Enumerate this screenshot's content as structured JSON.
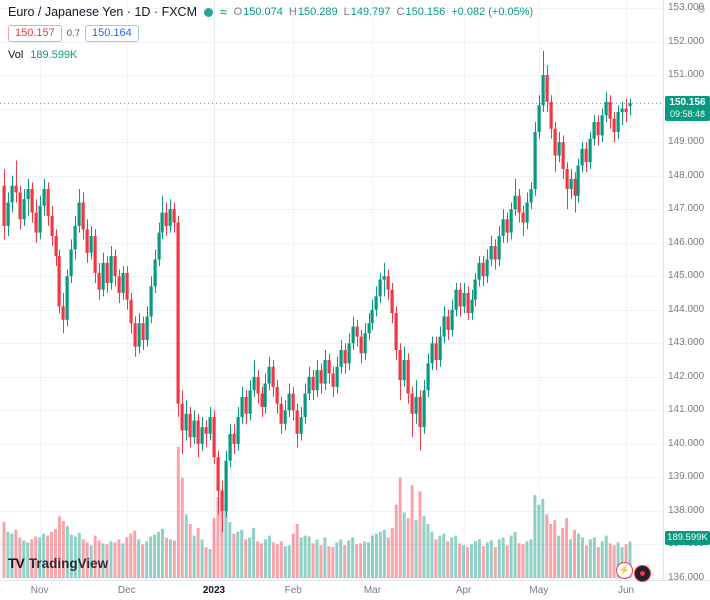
{
  "header": {
    "symbol_title": "Euro / Japanese Yen · 1D · FXCM",
    "ohlc": {
      "o_label": "O",
      "o_value": "150.074",
      "h_label": "H",
      "h_value": "150.289",
      "l_label": "L",
      "l_value": "149.797",
      "c_label": "C",
      "c_value": "150.156",
      "change": "+0.082 (+0.05%)"
    },
    "bid": "150.157",
    "spread": "0.7",
    "ask": "150.164",
    "vol_label": "Vol",
    "vol_value": "189.599K"
  },
  "price_badge": {
    "price": "150.156",
    "countdown": "09:58:48"
  },
  "vol_badge": "189.599K",
  "logo": {
    "mark": "TV",
    "text": "TradingView"
  },
  "icons": {
    "gear": "⚙",
    "lightning": "⚡",
    "wave": "≈"
  },
  "chart_data": {
    "type": "candlestick",
    "ylim": [
      136,
      153
    ],
    "y_tick_labels": [
      "153.000",
      "152.000",
      "151.000",
      "150.000",
      "149.000",
      "148.000",
      "147.000",
      "146.000",
      "145.000",
      "144.000",
      "143.000",
      "142.000",
      "141.000",
      "140.000",
      "139.000",
      "138.000",
      "137.000",
      "136.000"
    ],
    "months": [
      {
        "label": "Nov",
        "idx": 9
      },
      {
        "label": "Dec",
        "idx": 31
      },
      {
        "label": "2023",
        "idx": 53,
        "year": true
      },
      {
        "label": "Feb",
        "idx": 73
      },
      {
        "label": "Mar",
        "idx": 93
      },
      {
        "label": "Apr",
        "idx": 116
      },
      {
        "label": "May",
        "idx": 135
      },
      {
        "label": "Jun",
        "idx": 157
      }
    ],
    "up_color": "#089981",
    "down_color": "#f23645",
    "vol_up_color": "rgba(8,153,129,0.45)",
    "vol_down_color": "rgba(242,54,69,0.45)",
    "grid_color": "#f0f3fa",
    "last_price": 150.156,
    "vol_axis_max": 700,
    "candles": [
      [
        147.7,
        148.2,
        146.1,
        146.5,
        290
      ],
      [
        146.5,
        147.5,
        146.2,
        147.2,
        240
      ],
      [
        147.2,
        148.0,
        146.9,
        147.7,
        230
      ],
      [
        147.7,
        148.45,
        147.2,
        147.5,
        250
      ],
      [
        147.5,
        147.7,
        146.4,
        146.7,
        210
      ],
      [
        146.7,
        147.6,
        146.5,
        147.3,
        195
      ],
      [
        147.3,
        147.9,
        146.8,
        147.6,
        185
      ],
      [
        147.6,
        147.8,
        146.6,
        146.9,
        200
      ],
      [
        146.9,
        147.3,
        146.0,
        146.3,
        215
      ],
      [
        146.3,
        147.4,
        146.1,
        147.1,
        210
      ],
      [
        147.1,
        147.9,
        146.8,
        147.6,
        230
      ],
      [
        147.6,
        147.8,
        146.5,
        146.8,
        220
      ],
      [
        146.8,
        147.1,
        145.9,
        146.2,
        240
      ],
      [
        146.2,
        146.4,
        145.3,
        145.6,
        255
      ],
      [
        145.6,
        145.8,
        143.9,
        144.1,
        320
      ],
      [
        144.1,
        144.5,
        143.3,
        143.7,
        295
      ],
      [
        143.7,
        145.2,
        143.5,
        145.0,
        270
      ],
      [
        145.0,
        146.1,
        144.8,
        145.8,
        225
      ],
      [
        145.8,
        146.8,
        145.5,
        146.5,
        215
      ],
      [
        146.5,
        147.6,
        146.3,
        147.2,
        235
      ],
      [
        147.2,
        147.5,
        146.1,
        146.4,
        200
      ],
      [
        146.4,
        146.7,
        145.4,
        145.7,
        185
      ],
      [
        145.7,
        146.5,
        145.5,
        146.2,
        170
      ],
      [
        146.2,
        146.4,
        144.8,
        145.1,
        220
      ],
      [
        145.1,
        145.4,
        144.3,
        144.6,
        195
      ],
      [
        144.6,
        145.7,
        144.4,
        145.4,
        180
      ],
      [
        145.4,
        145.6,
        144.5,
        144.8,
        175
      ],
      [
        144.8,
        145.9,
        144.6,
        145.6,
        190
      ],
      [
        145.6,
        145.8,
        144.7,
        145.0,
        185
      ],
      [
        145.0,
        145.2,
        144.2,
        144.5,
        200
      ],
      [
        144.5,
        145.3,
        144.3,
        145.1,
        180
      ],
      [
        145.1,
        145.3,
        144.0,
        144.3,
        210
      ],
      [
        144.3,
        144.5,
        143.3,
        143.6,
        230
      ],
      [
        143.6,
        143.8,
        142.6,
        142.9,
        245
      ],
      [
        142.9,
        143.9,
        142.7,
        143.6,
        200
      ],
      [
        143.6,
        143.8,
        142.8,
        143.1,
        175
      ],
      [
        143.1,
        144.1,
        142.9,
        143.8,
        190
      ],
      [
        143.8,
        145.0,
        143.6,
        144.7,
        215
      ],
      [
        144.7,
        145.8,
        144.5,
        145.5,
        225
      ],
      [
        145.5,
        146.6,
        145.3,
        146.3,
        240
      ],
      [
        146.3,
        147.4,
        146.1,
        146.9,
        255
      ],
      [
        146.9,
        147.2,
        146.2,
        146.5,
        210
      ],
      [
        146.5,
        147.3,
        146.3,
        147.0,
        200
      ],
      [
        147.0,
        147.2,
        146.3,
        146.6,
        195
      ],
      [
        146.6,
        146.8,
        140.8,
        141.2,
        680
      ],
      [
        141.2,
        141.6,
        139.7,
        140.4,
        520
      ],
      [
        140.4,
        141.3,
        140.1,
        140.9,
        330
      ],
      [
        140.9,
        141.1,
        139.9,
        140.2,
        280
      ],
      [
        140.2,
        141.0,
        140.0,
        140.7,
        220
      ],
      [
        140.7,
        140.9,
        139.6,
        140.0,
        260
      ],
      [
        140.0,
        140.8,
        139.8,
        140.5,
        200
      ],
      [
        140.5,
        140.7,
        139.9,
        140.3,
        160
      ],
      [
        140.3,
        141.1,
        140.1,
        140.8,
        150
      ],
      [
        140.8,
        141.0,
        139.4,
        139.6,
        310
      ],
      [
        139.6,
        139.8,
        137.9,
        138.6,
        420
      ],
      [
        138.6,
        138.9,
        137.38,
        138.0,
        460
      ],
      [
        138.0,
        139.8,
        137.8,
        139.5,
        380
      ],
      [
        139.5,
        140.6,
        139.3,
        140.3,
        290
      ],
      [
        140.3,
        140.6,
        139.7,
        140.0,
        230
      ],
      [
        140.0,
        141.1,
        139.8,
        140.8,
        240
      ],
      [
        140.8,
        141.7,
        140.6,
        141.4,
        250
      ],
      [
        141.4,
        141.6,
        140.6,
        140.9,
        200
      ],
      [
        140.9,
        141.9,
        140.7,
        141.6,
        210
      ],
      [
        141.6,
        142.5,
        141.4,
        142.0,
        260
      ],
      [
        142.0,
        142.2,
        141.2,
        141.5,
        190
      ],
      [
        141.5,
        141.7,
        140.8,
        141.1,
        180
      ],
      [
        141.1,
        142.1,
        140.9,
        141.8,
        200
      ],
      [
        141.8,
        142.6,
        141.6,
        142.3,
        220
      ],
      [
        142.3,
        142.5,
        141.4,
        141.7,
        185
      ],
      [
        141.7,
        141.9,
        140.9,
        141.2,
        175
      ],
      [
        141.2,
        141.4,
        140.3,
        140.6,
        190
      ],
      [
        140.6,
        141.3,
        140.4,
        141.0,
        165
      ],
      [
        141.0,
        141.8,
        140.8,
        141.5,
        170
      ],
      [
        141.5,
        141.7,
        140.7,
        141.0,
        230
      ],
      [
        141.0,
        141.2,
        139.9,
        140.3,
        280
      ],
      [
        140.3,
        141.1,
        140.1,
        140.8,
        210
      ],
      [
        140.8,
        141.8,
        140.6,
        141.5,
        220
      ],
      [
        141.5,
        142.3,
        141.3,
        142.0,
        215
      ],
      [
        142.0,
        142.2,
        141.3,
        141.6,
        180
      ],
      [
        141.6,
        142.5,
        141.4,
        142.2,
        200
      ],
      [
        142.2,
        142.4,
        141.5,
        141.8,
        170
      ],
      [
        141.8,
        142.8,
        141.6,
        142.5,
        210
      ],
      [
        142.5,
        142.7,
        141.8,
        142.1,
        165
      ],
      [
        142.1,
        142.3,
        141.4,
        141.7,
        160
      ],
      [
        141.7,
        142.6,
        141.5,
        142.3,
        185
      ],
      [
        142.3,
        143.1,
        142.1,
        142.8,
        200
      ],
      [
        142.8,
        143.0,
        142.1,
        142.4,
        170
      ],
      [
        142.4,
        143.3,
        142.2,
        143.0,
        195
      ],
      [
        143.0,
        143.8,
        142.8,
        143.5,
        210
      ],
      [
        143.5,
        143.7,
        142.9,
        143.2,
        175
      ],
      [
        143.2,
        143.4,
        142.4,
        142.7,
        180
      ],
      [
        142.7,
        143.6,
        142.5,
        143.3,
        190
      ],
      [
        143.3,
        143.9,
        143.1,
        143.6,
        185
      ],
      [
        143.6,
        144.3,
        143.4,
        144.0,
        220
      ],
      [
        144.0,
        144.7,
        143.8,
        144.4,
        230
      ],
      [
        144.4,
        145.1,
        144.2,
        144.9,
        240
      ],
      [
        144.9,
        145.4,
        144.4,
        145.0,
        250
      ],
      [
        145.0,
        145.2,
        144.3,
        144.6,
        210
      ],
      [
        144.6,
        144.8,
        143.6,
        143.9,
        260
      ],
      [
        143.9,
        144.1,
        142.5,
        142.8,
        380
      ],
      [
        142.8,
        143.0,
        141.3,
        141.9,
        520
      ],
      [
        141.9,
        142.9,
        141.7,
        142.5,
        340
      ],
      [
        142.5,
        142.7,
        141.2,
        141.5,
        310
      ],
      [
        141.5,
        141.7,
        140.2,
        140.9,
        480
      ],
      [
        140.9,
        141.9,
        140.6,
        141.4,
        300
      ],
      [
        141.4,
        141.6,
        139.8,
        140.5,
        450
      ],
      [
        140.5,
        141.9,
        140.3,
        141.6,
        320
      ],
      [
        141.6,
        142.7,
        141.4,
        142.4,
        280
      ],
      [
        142.4,
        143.2,
        142.2,
        143.0,
        240
      ],
      [
        143.0,
        143.2,
        142.2,
        142.5,
        200
      ],
      [
        142.5,
        143.5,
        142.3,
        143.2,
        220
      ],
      [
        143.2,
        144.1,
        143.0,
        143.8,
        230
      ],
      [
        143.8,
        144.0,
        143.1,
        143.4,
        190
      ],
      [
        143.4,
        144.3,
        143.2,
        144.0,
        210
      ],
      [
        144.0,
        144.8,
        143.8,
        144.6,
        220
      ],
      [
        144.6,
        144.8,
        143.8,
        144.1,
        180
      ],
      [
        144.1,
        144.8,
        143.9,
        144.5,
        170
      ],
      [
        144.5,
        144.7,
        143.7,
        143.9,
        160
      ],
      [
        143.9,
        144.6,
        143.7,
        144.3,
        175
      ],
      [
        144.3,
        145.1,
        144.1,
        144.9,
        190
      ],
      [
        144.9,
        145.6,
        144.7,
        145.4,
        200
      ],
      [
        145.4,
        145.6,
        144.7,
        145.0,
        165
      ],
      [
        145.0,
        145.8,
        144.8,
        145.5,
        185
      ],
      [
        145.5,
        146.2,
        145.3,
        145.9,
        195
      ],
      [
        145.9,
        146.1,
        145.2,
        145.5,
        160
      ],
      [
        145.5,
        146.5,
        145.3,
        146.2,
        200
      ],
      [
        146.2,
        147.0,
        146.0,
        146.7,
        210
      ],
      [
        146.7,
        146.9,
        146.0,
        146.3,
        170
      ],
      [
        146.3,
        147.2,
        146.1,
        147.0,
        220
      ],
      [
        147.0,
        147.9,
        146.8,
        147.4,
        240
      ],
      [
        147.4,
        147.6,
        146.6,
        146.9,
        180
      ],
      [
        146.9,
        147.1,
        146.2,
        146.6,
        175
      ],
      [
        146.6,
        147.5,
        146.4,
        147.2,
        190
      ],
      [
        147.2,
        147.8,
        147.0,
        147.6,
        200
      ],
      [
        147.6,
        149.6,
        147.4,
        149.3,
        430
      ],
      [
        149.3,
        150.4,
        149.1,
        150.1,
        380
      ],
      [
        150.1,
        151.72,
        149.9,
        151.0,
        410
      ],
      [
        151.0,
        151.3,
        149.9,
        150.2,
        330
      ],
      [
        150.2,
        150.4,
        149.1,
        149.4,
        280
      ],
      [
        149.4,
        149.6,
        148.1,
        148.6,
        300
      ],
      [
        148.6,
        149.3,
        148.4,
        149.0,
        220
      ],
      [
        149.0,
        149.2,
        147.9,
        148.2,
        260
      ],
      [
        148.2,
        148.4,
        147.0,
        147.6,
        310
      ],
      [
        147.6,
        148.2,
        147.3,
        147.9,
        200
      ],
      [
        147.9,
        148.1,
        146.9,
        147.4,
        250
      ],
      [
        147.4,
        148.5,
        147.2,
        148.3,
        230
      ],
      [
        148.3,
        149.0,
        148.1,
        148.8,
        210
      ],
      [
        148.8,
        149.0,
        148.1,
        148.4,
        170
      ],
      [
        148.4,
        149.3,
        148.2,
        149.1,
        200
      ],
      [
        149.1,
        149.8,
        148.9,
        149.6,
        210
      ],
      [
        149.6,
        149.8,
        148.9,
        149.2,
        160
      ],
      [
        149.2,
        150.0,
        149.0,
        149.8,
        190
      ],
      [
        149.8,
        150.5,
        149.6,
        150.2,
        220
      ],
      [
        150.2,
        150.4,
        149.4,
        149.7,
        180
      ],
      [
        149.7,
        149.9,
        149.0,
        149.3,
        170
      ],
      [
        149.3,
        150.1,
        149.1,
        149.9,
        185
      ],
      [
        149.9,
        150.2,
        149.5,
        150.0,
        160
      ],
      [
        150.0,
        150.3,
        149.6,
        149.9,
        175
      ],
      [
        150.074,
        150.289,
        149.797,
        150.156,
        189.599
      ]
    ]
  }
}
